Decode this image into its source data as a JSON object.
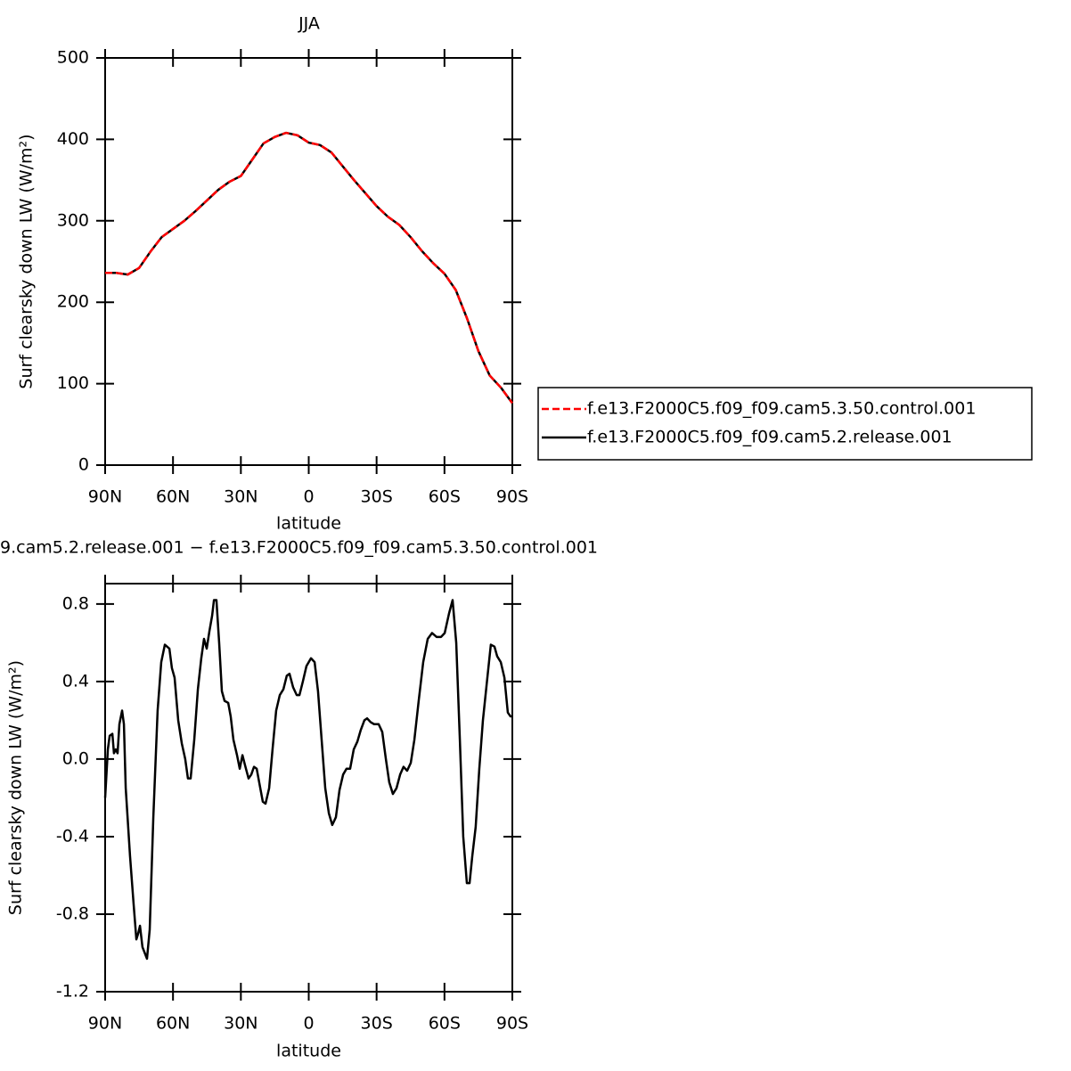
{
  "chart_data": [
    {
      "type": "line",
      "title": "JJA",
      "x_label": "latitude",
      "y_label": "Surf clearsky down LW (W/m²)",
      "x": [
        90,
        85,
        80,
        75,
        70,
        65,
        60,
        55,
        50,
        45,
        40,
        35,
        30,
        25,
        20,
        15,
        10,
        5,
        0,
        -5,
        -10,
        -15,
        -20,
        -25,
        -30,
        -35,
        -40,
        -45,
        -50,
        -55,
        -60,
        -65,
        -70,
        -75,
        -80,
        -85,
        -90
      ],
      "series": [
        {
          "name": "f.e13.F2000C5.f09_f09.cam5.3.50.control.001",
          "color": "#ff0000",
          "dash": true,
          "values": [
            236,
            236,
            234,
            242,
            262,
            280,
            290,
            300,
            312,
            325,
            338,
            348,
            355,
            375,
            395,
            403,
            408,
            405,
            396,
            393,
            384,
            367,
            350,
            334,
            318,
            305,
            295,
            280,
            263,
            248,
            235,
            215,
            180,
            140,
            110,
            95,
            76
          ]
        },
        {
          "name": "f.e13.F2000C5.f09_f09.cam5.2.release.001",
          "color": "#000000",
          "dash": false,
          "values": [
            236,
            236,
            234,
            242,
            262,
            280,
            290,
            300,
            312,
            325,
            338,
            348,
            355,
            375,
            395,
            403,
            408,
            405,
            396,
            393,
            384,
            367,
            350,
            334,
            318,
            305,
            295,
            280,
            263,
            248,
            235,
            215,
            180,
            140,
            110,
            95,
            76
          ]
        }
      ],
      "xlim": [
        90,
        -90
      ],
      "xticks": [
        {
          "value": 90,
          "label": "90N"
        },
        {
          "value": 60,
          "label": "60N"
        },
        {
          "value": 30,
          "label": "30N"
        },
        0,
        {
          "value": -30,
          "label": "30S"
        },
        {
          "value": -60,
          "label": "60S"
        },
        {
          "value": -90,
          "label": "90S"
        }
      ],
      "ylim": [
        0,
        500
      ],
      "yticks": [
        0,
        100,
        200,
        300,
        400,
        500
      ],
      "legend": "right"
    },
    {
      "type": "line",
      "title": "9.cam5.2.release.001 − f.e13.F2000C5.f09_f09.cam5.3.50.control.001",
      "x_label": "latitude",
      "y_label": "Surf clearsky down LW (W/m²)",
      "x": [
        90,
        88.8,
        88.0,
        86.8,
        86.1,
        85.3,
        84.5,
        83.7,
        82.5,
        81.7,
        80.9,
        79.0,
        77.4,
        76.2,
        75.4,
        74.6,
        73.5,
        71.5,
        70.3,
        68.7,
        66.8,
        65.2,
        63.6,
        61.6,
        60.5,
        59.3,
        57.7,
        56.1,
        54.6,
        53.4,
        52.2,
        50.6,
        49.0,
        47.5,
        46.3,
        45.1,
        43.9,
        42.7,
        41.9,
        40.8,
        39.6,
        38.4,
        37.2,
        35.6,
        34.5,
        33.3,
        31.7,
        30.5,
        29.3,
        28.2,
        26.6,
        25.4,
        24.2,
        23.0,
        21.9,
        20.3,
        19.1,
        17.5,
        16.0,
        14.4,
        12.8,
        11.2,
        9.7,
        8.5,
        6.9,
        5.3,
        4.1,
        2.6,
        1.0,
        -1.0,
        -2.6,
        -4.1,
        -5.7,
        -7.3,
        -8.9,
        -10.4,
        -12.0,
        -13.6,
        -15.2,
        -16.7,
        -18.3,
        -19.9,
        -21.5,
        -23.0,
        -24.6,
        -25.8,
        -27.4,
        -28.9,
        -30.9,
        -32.5,
        -34.1,
        -35.6,
        -37.2,
        -38.8,
        -40.4,
        -41.9,
        -43.5,
        -45.1,
        -46.7,
        -48.6,
        -50.6,
        -52.6,
        -54.5,
        -56.5,
        -58.5,
        -60.1,
        -62.0,
        -63.6,
        -65.2,
        -66.8,
        -68.3,
        -69.9,
        -71.1,
        -72.3,
        -73.8,
        -75.4,
        -77.0,
        -78.6,
        -80.5,
        -82.1,
        -83.3,
        -84.9,
        -86.5,
        -88.0,
        -89.2,
        -90
      ],
      "series": [
        {
          "color": "#000000",
          "dash": false,
          "values": [
            -0.2,
            0.05,
            0.12,
            0.13,
            0.03,
            0.05,
            0.03,
            0.18,
            0.25,
            0.18,
            -0.15,
            -0.5,
            -0.75,
            -0.93,
            -0.9,
            -0.86,
            -0.97,
            -1.03,
            -0.88,
            -0.3,
            0.25,
            0.5,
            0.59,
            0.57,
            0.47,
            0.42,
            0.2,
            0.08,
            0.0,
            -0.1,
            -0.1,
            0.1,
            0.36,
            0.52,
            0.62,
            0.57,
            0.66,
            0.74,
            0.82,
            0.82,
            0.6,
            0.35,
            0.3,
            0.29,
            0.22,
            0.1,
            0.02,
            -0.05,
            0.02,
            -0.03,
            -0.1,
            -0.08,
            -0.04,
            -0.05,
            -0.12,
            -0.22,
            -0.23,
            -0.15,
            0.05,
            0.25,
            0.33,
            0.36,
            0.43,
            0.44,
            0.37,
            0.33,
            0.33,
            0.4,
            0.48,
            0.52,
            0.5,
            0.35,
            0.1,
            -0.15,
            -0.28,
            -0.34,
            -0.3,
            -0.16,
            -0.08,
            -0.05,
            -0.05,
            0.05,
            0.09,
            0.15,
            0.2,
            0.21,
            0.19,
            0.18,
            0.18,
            0.14,
            0.0,
            -0.12,
            -0.18,
            -0.15,
            -0.08,
            -0.04,
            -0.06,
            -0.02,
            0.1,
            0.3,
            0.5,
            0.62,
            0.65,
            0.63,
            0.63,
            0.65,
            0.75,
            0.82,
            0.6,
            0.1,
            -0.4,
            -0.64,
            -0.64,
            -0.5,
            -0.35,
            -0.05,
            0.2,
            0.38,
            0.59,
            0.58,
            0.53,
            0.5,
            0.42,
            0.24,
            0.22,
            0.22
          ]
        }
      ],
      "xlim": [
        90,
        -90
      ],
      "xticks": [
        {
          "value": 90,
          "label": "90N"
        },
        {
          "value": 60,
          "label": "60N"
        },
        {
          "value": 30,
          "label": "30N"
        },
        0,
        {
          "value": -30,
          "label": "30S"
        },
        {
          "value": -60,
          "label": "60S"
        },
        {
          "value": -90,
          "label": "90S"
        }
      ],
      "ylim": [
        -1.2,
        0.905
      ],
      "yticks": [
        -1.2,
        -0.8,
        -0.4,
        {
          "value": 0,
          "label": "0.0"
        },
        0.4,
        0.8
      ]
    }
  ]
}
